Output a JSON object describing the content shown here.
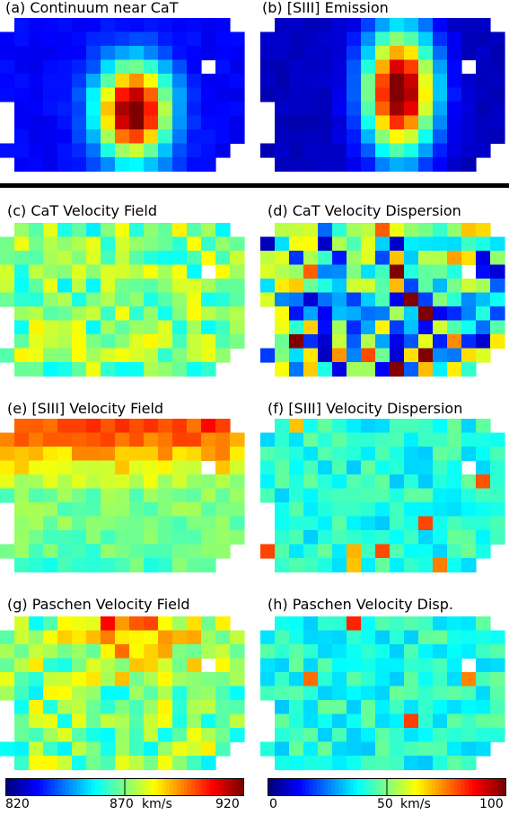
{
  "panels": [
    {
      "label": "(a) Continuum near CaT",
      "kind": "continuum"
    },
    {
      "label": "(b) [SIII] Emission",
      "kind": "emission"
    },
    {
      "label": "(c) CaT Velocity Field",
      "kind": "vel_cat"
    },
    {
      "label": "(d) CaT Velocity Dispersion",
      "kind": "disp_cat"
    },
    {
      "label": "(e) [SIII] Velocity Field",
      "kind": "vel_siii"
    },
    {
      "label": "(f) [SIII] Velocity Dispersion",
      "kind": "disp_siii"
    },
    {
      "label": "(g) Paschen Velocity Field",
      "kind": "vel_pa"
    },
    {
      "label": "(h) Paschen Velocity Disp.",
      "kind": "disp_pa"
    }
  ],
  "chart_data": {
    "type": "heatmap",
    "colormap": "jet",
    "velocity_colorbar": {
      "ticks": [
        820,
        870,
        920
      ],
      "unit": "km/s",
      "range": [
        820,
        920
      ]
    },
    "dispersion_colorbar": {
      "ticks": [
        0,
        50,
        100
      ],
      "unit": "km/s",
      "range": [
        0,
        100
      ]
    }
  },
  "colorbars": {
    "velocity": {
      "min_label": "820",
      "mid_label": "870",
      "max_label": "920",
      "unit": "km/s"
    },
    "dispersion": {
      "min_label": "0",
      "mid_label": "50",
      "max_label": "100",
      "unit": "km/s"
    }
  }
}
